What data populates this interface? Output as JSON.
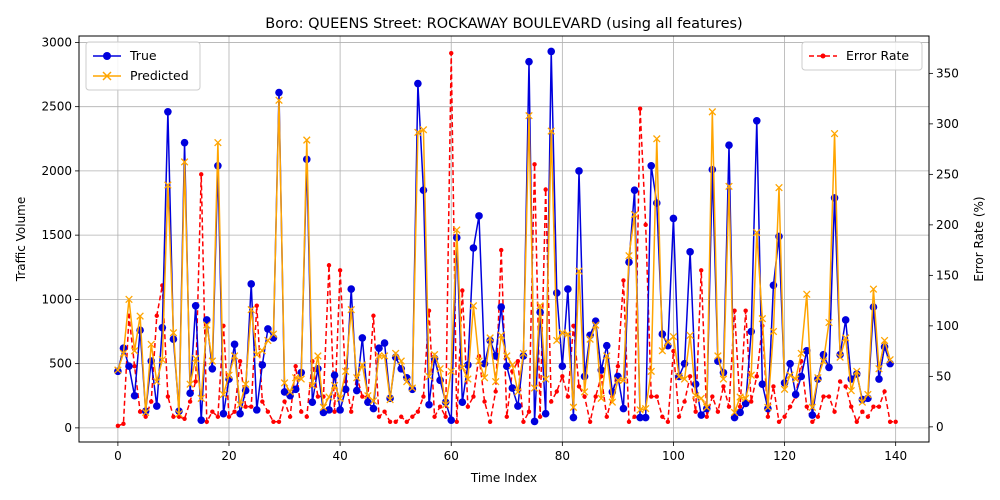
{
  "chart_data": {
    "type": "line",
    "title": "Boro: QUEENS Street: ROCKAWAY BOULEVARD (using all features)",
    "xlabel": "Time Index",
    "ylabel_left": "Traffic Volume",
    "ylabel_right": "Error Rate (%)",
    "xlim": [
      -7,
      146
    ],
    "ylim_left": [
      -110,
      3050
    ],
    "ylim_right": [
      -15,
      387
    ],
    "x_ticks": [
      0,
      20,
      40,
      60,
      80,
      100,
      120,
      140
    ],
    "y_ticks_left": [
      0,
      500,
      1000,
      1500,
      2000,
      2500,
      3000
    ],
    "y_ticks_right": [
      0,
      50,
      100,
      150,
      200,
      250,
      300,
      350
    ],
    "grid": true,
    "legend_left_position": "upper-left",
    "legend_right_position": "upper-right",
    "colors": {
      "true": "#0000dd",
      "predicted": "#ffa500",
      "error": "#ff0000"
    },
    "series": [
      {
        "name": "True",
        "values": [
          440,
          620,
          480,
          250,
          760,
          130,
          520,
          170,
          780,
          2460,
          690,
          130,
          2220,
          270,
          950,
          60,
          840,
          460,
          2040,
          110,
          380,
          650,
          110,
          290,
          1120,
          140,
          490,
          770,
          700,
          2610,
          280,
          250,
          300,
          430,
          2090,
          200,
          460,
          120,
          140,
          410,
          140,
          300,
          1080,
          290,
          700,
          200,
          150,
          620,
          660,
          230,
          550,
          460,
          390,
          300,
          2680,
          1850,
          180,
          540,
          370,
          200,
          60,
          1480,
          200,
          490,
          1400,
          1650,
          500,
          680,
          560,
          940,
          480,
          310,
          170,
          560,
          2850,
          50,
          900,
          110,
          2930,
          1050,
          480,
          1080,
          80,
          2000,
          400,
          720,
          830,
          450,
          640,
          280,
          400,
          150,
          1290,
          1850,
          80,
          80,
          2040,
          1750,
          730,
          640,
          1630,
          400,
          500,
          1370,
          340,
          100,
          150,
          2010,
          520,
          430,
          2200,
          80,
          120,
          190,
          750,
          2390,
          340,
          150,
          1110,
          1490,
          350,
          500,
          260,
          400,
          600,
          100,
          380,
          570,
          470,
          1790,
          570,
          840,
          380,
          420,
          220,
          230,
          940,
          380,
          630,
          500
        ]
      },
      {
        "name": "Predicted",
        "values": [
          450,
          580,
          1000,
          600,
          870,
          120,
          650,
          360,
          530,
          1890,
          740,
          110,
          2070,
          340,
          540,
          230,
          800,
          520,
          2220,
          260,
          410,
          560,
          180,
          340,
          920,
          570,
          600,
          680,
          730,
          2550,
          350,
          280,
          390,
          380,
          2240,
          330,
          560,
          160,
          240,
          330,
          230,
          440,
          920,
          390,
          490,
          250,
          210,
          560,
          560,
          220,
          580,
          520,
          360,
          310,
          2300,
          2320,
          400,
          570,
          460,
          180,
          440,
          1540,
          470,
          380,
          950,
          520,
          390,
          700,
          360,
          720,
          560,
          490,
          280,
          580,
          2430,
          310,
          950,
          380,
          2310,
          680,
          740,
          730,
          160,
          1220,
          280,
          690,
          800,
          230,
          560,
          200,
          370,
          370,
          1340,
          1660,
          140,
          150,
          440,
          2250,
          600,
          670,
          710,
          400,
          380,
          720,
          250,
          230,
          160,
          2460,
          560,
          380,
          1880,
          120,
          240,
          230,
          410,
          1520,
          850,
          160,
          750,
          1870,
          300,
          410,
          380,
          580,
          1040,
          160,
          390,
          520,
          820,
          2290,
          550,
          700,
          290,
          440,
          200,
          260,
          1080,
          460,
          680,
          530
        ]
      },
      {
        "name": "Error Rate",
        "values": [
          1,
          3,
          110,
          60,
          15,
          10,
          25,
          110,
          140,
          30,
          10,
          10,
          8,
          25,
          45,
          250,
          5,
          15,
          10,
          100,
          10,
          15,
          65,
          20,
          20,
          120,
          25,
          15,
          5,
          5,
          25,
          10,
          60,
          15,
          10,
          65,
          30,
          30,
          160,
          15,
          155,
          45,
          15,
          50,
          30,
          30,
          110,
          10,
          15,
          5,
          5,
          10,
          5,
          10,
          15,
          30,
          115,
          10,
          20,
          10,
          370,
          5,
          135,
          20,
          30,
          70,
          25,
          5,
          35,
          175,
          10,
          55,
          65,
          5,
          15,
          260,
          10,
          235,
          25,
          35,
          50,
          30,
          100,
          40,
          30,
          5,
          30,
          50,
          10,
          30,
          60,
          145,
          5,
          10,
          315,
          200,
          30,
          30,
          10,
          5,
          75,
          10,
          25,
          50,
          15,
          155,
          10,
          30,
          15,
          40,
          20,
          115,
          20,
          115,
          25,
          50,
          100,
          10,
          40,
          5,
          10,
          20,
          30,
          65,
          20,
          5,
          10,
          30,
          30,
          15,
          45,
          40,
          20,
          5,
          15,
          10,
          20,
          20,
          35,
          5,
          5
        ]
      }
    ]
  },
  "legend": {
    "true_label": "True",
    "predicted_label": "Predicted",
    "error_label": "Error Rate"
  }
}
